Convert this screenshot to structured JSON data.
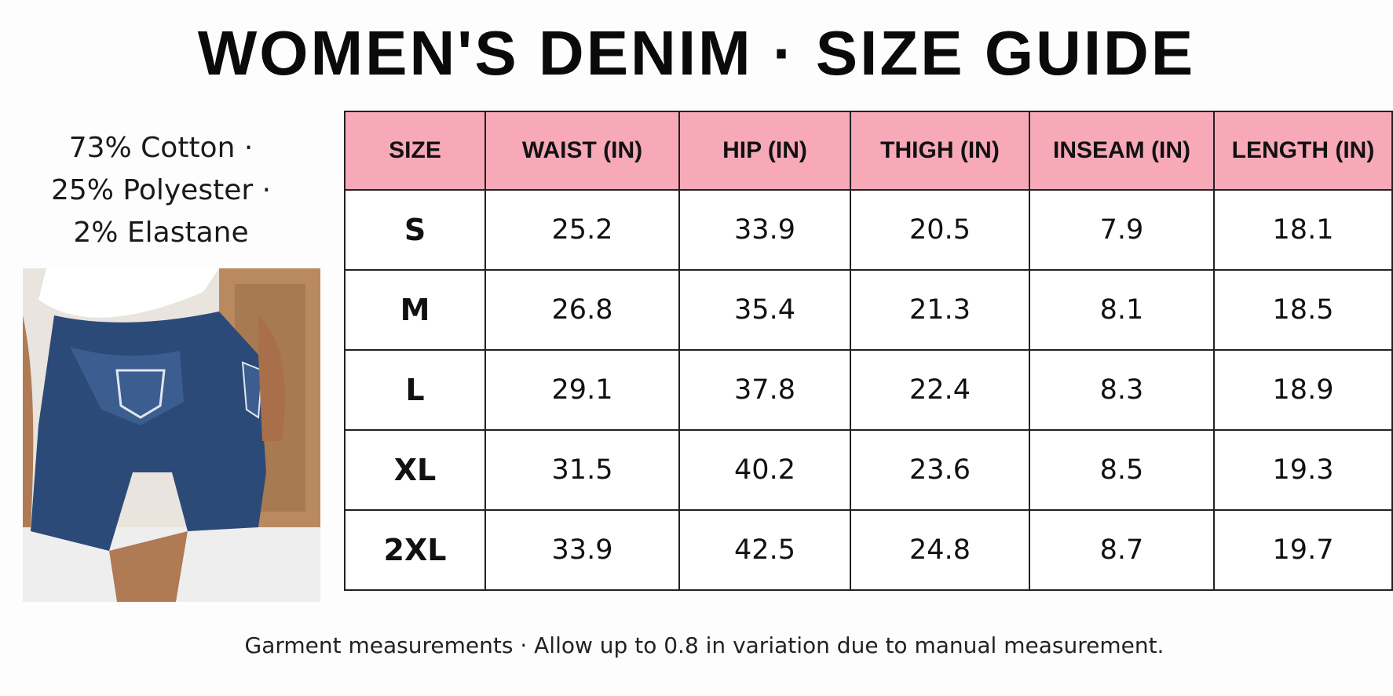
{
  "header": {
    "title": "WOMEN'S DENIM · SIZE GUIDE"
  },
  "material": [
    "73% Cotton ·",
    "25% Polyester ·",
    "2% Elastane"
  ],
  "table": {
    "columns": [
      "SIZE",
      "WAIST (IN)",
      "HIP (IN)",
      "THIGH (IN)",
      "INSEAM (IN)",
      "LENGTH (IN)"
    ],
    "rows": [
      [
        "S",
        25.2,
        33.9,
        20.5,
        7.9,
        18.1
      ],
      [
        "M",
        26.8,
        35.4,
        21.3,
        8.1,
        18.5
      ],
      [
        "L",
        29.1,
        37.8,
        22.4,
        8.3,
        18.9
      ],
      [
        "XL",
        31.5,
        40.2,
        23.6,
        8.5,
        19.3
      ],
      [
        "2XL",
        33.9,
        42.5,
        24.8,
        8.7,
        19.7
      ]
    ]
  },
  "footnote": "Garment measurements · Allow up to 0.8 in variation due to manual measurement."
}
